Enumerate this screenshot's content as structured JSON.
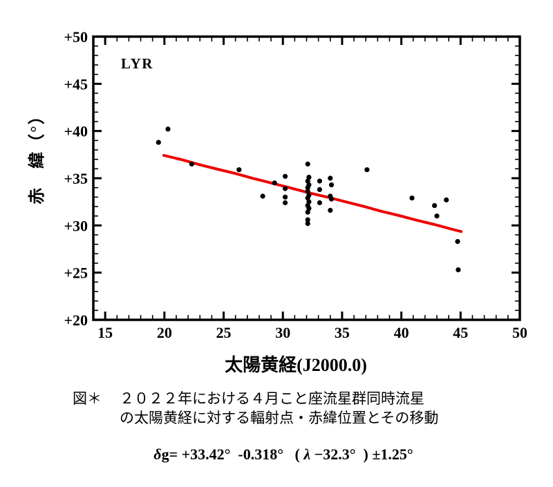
{
  "chart_data": {
    "type": "scatter",
    "title": "",
    "annotation": "LYR",
    "xlabel": "太陽黄経(J2000.0)",
    "ylabel": "赤　緯（°）",
    "xlim": [
      14,
      50
    ],
    "ylim": [
      20,
      50
    ],
    "grid": false,
    "legend": "none",
    "x_minor_step": 1,
    "y_minor_step": 1,
    "x_major_ticks": [
      15,
      20,
      25,
      30,
      35,
      40,
      45,
      50
    ],
    "x_major_labels": [
      "15",
      "20",
      "25",
      "30",
      "35",
      "40",
      "45",
      "50"
    ],
    "y_major_ticks": [
      20,
      25,
      30,
      35,
      40,
      45,
      50
    ],
    "y_major_labels": [
      "+20",
      "+25",
      "+30",
      "+35",
      "+40",
      "+45",
      "+50"
    ],
    "point_color": "#000000",
    "points": [
      [
        19.5,
        38.8
      ],
      [
        20.3,
        40.2
      ],
      [
        22.3,
        36.5
      ],
      [
        26.3,
        35.9
      ],
      [
        28.3,
        33.1
      ],
      [
        29.3,
        34.5
      ],
      [
        30.2,
        35.2
      ],
      [
        30.2,
        33.9
      ],
      [
        30.2,
        33.0
      ],
      [
        30.2,
        32.4
      ],
      [
        32.1,
        36.5
      ],
      [
        32.2,
        35.1
      ],
      [
        32.1,
        34.7
      ],
      [
        32.2,
        34.3
      ],
      [
        32.1,
        34.0
      ],
      [
        32.1,
        33.6
      ],
      [
        32.2,
        33.2
      ],
      [
        32.1,
        32.9
      ],
      [
        32.2,
        32.5
      ],
      [
        32.1,
        32.1
      ],
      [
        32.2,
        31.8
      ],
      [
        32.1,
        31.4
      ],
      [
        32.1,
        30.6
      ],
      [
        32.1,
        30.2
      ],
      [
        33.1,
        34.7
      ],
      [
        33.1,
        33.8
      ],
      [
        33.1,
        32.4
      ],
      [
        34.0,
        35.0
      ],
      [
        34.1,
        34.3
      ],
      [
        34.0,
        33.1
      ],
      [
        34.1,
        32.8
      ],
      [
        34.0,
        31.6
      ],
      [
        37.1,
        35.9
      ],
      [
        40.9,
        32.9
      ],
      [
        42.8,
        32.1
      ],
      [
        43.0,
        31.0
      ],
      [
        43.8,
        32.7
      ],
      [
        44.75,
        28.3
      ],
      [
        44.8,
        25.3
      ]
    ],
    "trend_line": {
      "color": "#ee0000",
      "width": 4,
      "equation": "δg = +33.42° -0.318°(λ−32.3°) ±1.25°",
      "points": [
        [
          19.95,
          37.42
        ],
        [
          21.5,
          36.95
        ],
        [
          23.0,
          36.42
        ],
        [
          24.5,
          35.95
        ],
        [
          26.0,
          35.5
        ],
        [
          27.5,
          34.98
        ],
        [
          29.0,
          34.5
        ],
        [
          30.5,
          34.02
        ],
        [
          32.3,
          33.42
        ],
        [
          33.8,
          32.98
        ],
        [
          35.3,
          32.5
        ],
        [
          36.8,
          32.02
        ],
        [
          38.3,
          31.5
        ],
        [
          39.8,
          31.05
        ],
        [
          41.3,
          30.55
        ],
        [
          42.8,
          30.1
        ],
        [
          44.2,
          29.62
        ],
        [
          45.05,
          29.35
        ]
      ]
    }
  },
  "caption": {
    "prefix": "図＊",
    "line1": "２０２２年における４月こと座流星群同時流星",
    "line2": "の太陽黄経に対する輻射点・赤緯位置とその移動"
  },
  "formula": {
    "p1": "δ",
    "p2": "g= +33.42°  -0.318°   ( ",
    "p3": "λ",
    "p4": " −32.3°  ) ±1.25°"
  },
  "colors": {
    "frame": "#000000",
    "points": "#000000",
    "trend": "#ee0000",
    "background": "#ffffff"
  }
}
